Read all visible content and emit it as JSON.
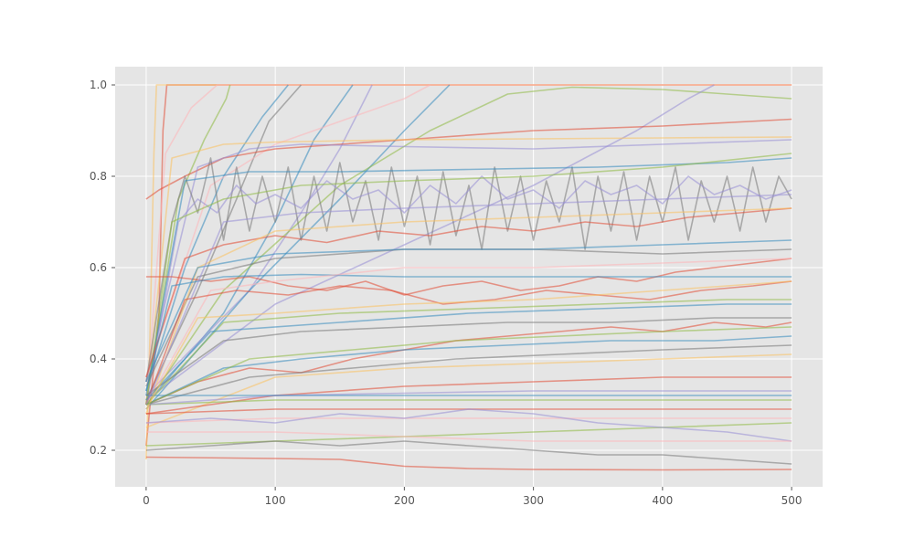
{
  "chart_data": {
    "type": "line",
    "title": "",
    "xlabel": "",
    "ylabel": "",
    "xlim": [
      -24,
      524
    ],
    "ylim": [
      0.12,
      1.04
    ],
    "grid": true,
    "legend": "none",
    "background": "#e5e5e5",
    "palette": [
      "#e24a33",
      "#348abd",
      "#988ed5",
      "#777777",
      "#fbc15e",
      "#8eba42",
      "#ffb5b8"
    ],
    "x_ticks": [
      "0",
      "100",
      "200",
      "300",
      "400",
      "500"
    ],
    "x_tick_values": [
      0,
      100,
      200,
      300,
      400,
      500
    ],
    "y_ticks": [
      "0.2",
      "0.4",
      "0.6",
      "0.8",
      "1.0"
    ],
    "y_tick_values": [
      0.2,
      0.4,
      0.6,
      0.8,
      1.0
    ],
    "series": [
      {
        "color": "#e24a33",
        "x": [
          0,
          10,
          13,
          16,
          500
        ],
        "y": [
          0.21,
          0.5,
          0.9,
          1.0,
          1.0
        ]
      },
      {
        "color": "#fbc15e",
        "x": [
          0,
          3,
          6,
          8,
          500
        ],
        "y": [
          0.18,
          0.45,
          0.85,
          1.0,
          1.0
        ]
      },
      {
        "color": "#ffb5b8",
        "x": [
          0,
          15,
          35,
          55,
          500
        ],
        "y": [
          0.3,
          0.85,
          0.95,
          1.0,
          1.0
        ]
      },
      {
        "color": "#8eba42",
        "x": [
          0,
          25,
          45,
          62,
          65
        ],
        "y": [
          0.3,
          0.75,
          0.88,
          0.97,
          1.0
        ]
      },
      {
        "color": "#348abd",
        "x": [
          0,
          30,
          60,
          90,
          110
        ],
        "y": [
          0.33,
          0.6,
          0.8,
          0.93,
          1.0
        ]
      },
      {
        "color": "#777777",
        "x": [
          0,
          40,
          70,
          95,
          120
        ],
        "y": [
          0.31,
          0.55,
          0.75,
          0.92,
          1.0
        ]
      },
      {
        "color": "#348abd",
        "x": [
          0,
          60,
          100,
          130,
          160
        ],
        "y": [
          0.3,
          0.5,
          0.7,
          0.88,
          1.0
        ]
      },
      {
        "color": "#988ed5",
        "x": [
          0,
          80,
          120,
          150,
          175
        ],
        "y": [
          0.32,
          0.55,
          0.72,
          0.86,
          1.0
        ]
      },
      {
        "color": "#ffb5b8",
        "x": [
          0,
          50,
          100,
          150,
          200,
          220
        ],
        "y": [
          0.36,
          0.78,
          0.87,
          0.92,
          0.97,
          1.0
        ]
      },
      {
        "color": "#348abd",
        "x": [
          0,
          80,
          150,
          200,
          235
        ],
        "y": [
          0.29,
          0.55,
          0.75,
          0.9,
          1.0
        ]
      },
      {
        "color": "#8eba42",
        "x": [
          0,
          60,
          150,
          220,
          280,
          330,
          400,
          500
        ],
        "y": [
          0.3,
          0.55,
          0.78,
          0.9,
          0.98,
          0.995,
          0.99,
          0.97
        ]
      },
      {
        "color": "#988ed5",
        "x": [
          0,
          100,
          200,
          300,
          380,
          420,
          440
        ],
        "y": [
          0.31,
          0.52,
          0.65,
          0.78,
          0.9,
          0.97,
          1.0
        ]
      },
      {
        "color": "#e24a33",
        "x": [
          0,
          10,
          30,
          60,
          100,
          200,
          300,
          400,
          500
        ],
        "y": [
          0.75,
          0.77,
          0.8,
          0.84,
          0.86,
          0.88,
          0.9,
          0.91,
          0.925
        ]
      },
      {
        "color": "#fbc15e",
        "x": [
          0,
          20,
          60,
          100,
          200,
          300,
          400,
          500
        ],
        "y": [
          0.3,
          0.84,
          0.87,
          0.875,
          0.88,
          0.882,
          0.884,
          0.886
        ]
      },
      {
        "color": "#988ed5",
        "x": [
          0,
          40,
          80,
          120,
          200,
          300,
          400,
          500
        ],
        "y": [
          0.35,
          0.82,
          0.86,
          0.87,
          0.865,
          0.86,
          0.87,
          0.88
        ]
      },
      {
        "color": "#777777",
        "x": [
          0,
          20,
          30,
          40,
          50,
          60,
          70,
          80,
          90,
          100,
          110,
          120,
          130,
          140,
          150,
          160,
          170,
          180,
          190,
          200,
          210,
          220,
          230,
          240,
          250,
          260,
          270,
          280,
          290,
          300,
          310,
          320,
          330,
          340,
          350,
          360,
          370,
          380,
          390,
          400,
          410,
          420,
          430,
          440,
          450,
          460,
          470,
          480,
          490,
          500
        ],
        "y": [
          0.35,
          0.7,
          0.8,
          0.72,
          0.84,
          0.66,
          0.82,
          0.68,
          0.8,
          0.7,
          0.82,
          0.66,
          0.8,
          0.68,
          0.83,
          0.7,
          0.79,
          0.66,
          0.82,
          0.69,
          0.8,
          0.65,
          0.81,
          0.67,
          0.78,
          0.64,
          0.82,
          0.68,
          0.8,
          0.66,
          0.79,
          0.7,
          0.82,
          0.64,
          0.8,
          0.68,
          0.81,
          0.66,
          0.8,
          0.7,
          0.82,
          0.66,
          0.79,
          0.7,
          0.8,
          0.68,
          0.82,
          0.7,
          0.8,
          0.75
        ]
      },
      {
        "color": "#988ed5",
        "x": [
          0,
          25,
          40,
          55,
          70,
          85,
          100,
          120,
          140,
          160,
          180,
          200,
          220,
          240,
          260,
          280,
          300,
          320,
          340,
          360,
          380,
          400,
          420,
          440,
          460,
          480,
          500
        ],
        "y": [
          0.3,
          0.7,
          0.75,
          0.72,
          0.78,
          0.74,
          0.76,
          0.73,
          0.79,
          0.75,
          0.77,
          0.72,
          0.78,
          0.74,
          0.8,
          0.75,
          0.77,
          0.73,
          0.79,
          0.76,
          0.78,
          0.74,
          0.8,
          0.76,
          0.78,
          0.75,
          0.77
        ]
      },
      {
        "color": "#348abd",
        "x": [
          0,
          30,
          80,
          150,
          250,
          350,
          450,
          500
        ],
        "y": [
          0.32,
          0.79,
          0.81,
          0.81,
          0.815,
          0.82,
          0.83,
          0.84
        ]
      },
      {
        "color": "#8eba42",
        "x": [
          0,
          20,
          60,
          120,
          200,
          300,
          400,
          500
        ],
        "y": [
          0.3,
          0.7,
          0.75,
          0.78,
          0.79,
          0.8,
          0.82,
          0.85
        ]
      },
      {
        "color": "#e24a33",
        "x": [
          0,
          30,
          60,
          100,
          140,
          180,
          220,
          260,
          300,
          340,
          380,
          420,
          460,
          500
        ],
        "y": [
          0.36,
          0.62,
          0.65,
          0.67,
          0.655,
          0.68,
          0.67,
          0.69,
          0.68,
          0.7,
          0.69,
          0.71,
          0.72,
          0.73
        ]
      },
      {
        "color": "#777777",
        "x": [
          0,
          40,
          100,
          200,
          300,
          400,
          500
        ],
        "y": [
          0.34,
          0.58,
          0.62,
          0.64,
          0.64,
          0.63,
          0.64
        ]
      },
      {
        "color": "#fbc15e",
        "x": [
          0,
          40,
          100,
          200,
          300,
          400,
          500
        ],
        "y": [
          0.28,
          0.6,
          0.68,
          0.7,
          0.71,
          0.72,
          0.73
        ]
      },
      {
        "color": "#e24a33",
        "x": [
          0,
          20,
          50,
          80,
          110,
          140,
          170,
          200,
          230,
          260,
          290,
          320,
          350,
          380,
          410,
          440,
          470,
          500
        ],
        "y": [
          0.58,
          0.58,
          0.57,
          0.58,
          0.56,
          0.55,
          0.57,
          0.54,
          0.56,
          0.57,
          0.55,
          0.56,
          0.58,
          0.57,
          0.59,
          0.6,
          0.61,
          0.62
        ]
      },
      {
        "color": "#348abd",
        "x": [
          0,
          20,
          60,
          120,
          200,
          300,
          400,
          500
        ],
        "y": [
          0.33,
          0.56,
          0.58,
          0.585,
          0.58,
          0.58,
          0.58,
          0.58
        ]
      },
      {
        "color": "#ffb5b8",
        "x": [
          0,
          50,
          100,
          200,
          300,
          400,
          500
        ],
        "y": [
          0.3,
          0.55,
          0.57,
          0.6,
          0.6,
          0.61,
          0.62
        ]
      },
      {
        "color": "#e24a33",
        "x": [
          0,
          30,
          70,
          110,
          150,
          190,
          230,
          270,
          310,
          350,
          390,
          430,
          470,
          500
        ],
        "y": [
          0.3,
          0.53,
          0.55,
          0.54,
          0.56,
          0.55,
          0.52,
          0.53,
          0.55,
          0.54,
          0.53,
          0.55,
          0.56,
          0.57
        ]
      },
      {
        "color": "#8eba42",
        "x": [
          0,
          60,
          150,
          250,
          350,
          450,
          500
        ],
        "y": [
          0.3,
          0.48,
          0.5,
          0.51,
          0.52,
          0.53,
          0.53
        ]
      },
      {
        "color": "#348abd",
        "x": [
          0,
          50,
          150,
          250,
          350,
          450,
          500
        ],
        "y": [
          0.31,
          0.46,
          0.48,
          0.5,
          0.51,
          0.52,
          0.52
        ]
      },
      {
        "color": "#e24a33",
        "x": [
          0,
          40,
          80,
          120,
          160,
          200,
          240,
          280,
          320,
          360,
          400,
          440,
          480,
          500
        ],
        "y": [
          0.3,
          0.35,
          0.38,
          0.37,
          0.4,
          0.42,
          0.44,
          0.45,
          0.46,
          0.47,
          0.46,
          0.48,
          0.47,
          0.48
        ]
      },
      {
        "color": "#777777",
        "x": [
          0,
          60,
          120,
          200,
          280,
          360,
          440,
          500
        ],
        "y": [
          0.32,
          0.44,
          0.46,
          0.47,
          0.48,
          0.48,
          0.49,
          0.49
        ]
      },
      {
        "color": "#348abd",
        "x": [
          0,
          60,
          120,
          200,
          280,
          360,
          440,
          500
        ],
        "y": [
          0.3,
          0.38,
          0.4,
          0.42,
          0.43,
          0.44,
          0.44,
          0.45
        ]
      },
      {
        "color": "#777777",
        "x": [
          0,
          80,
          160,
          240,
          320,
          400,
          500
        ],
        "y": [
          0.3,
          0.36,
          0.38,
          0.4,
          0.41,
          0.42,
          0.43
        ]
      },
      {
        "color": "#fbc15e",
        "x": [
          0,
          100,
          200,
          300,
          400,
          500
        ],
        "y": [
          0.25,
          0.36,
          0.38,
          0.39,
          0.4,
          0.41
        ]
      },
      {
        "color": "#e24a33",
        "x": [
          0,
          100,
          200,
          300,
          400,
          500
        ],
        "y": [
          0.28,
          0.32,
          0.34,
          0.35,
          0.36,
          0.36
        ]
      },
      {
        "color": "#8eba42",
        "x": [
          0,
          100,
          200,
          300,
          400,
          500
        ],
        "y": [
          0.3,
          0.31,
          0.31,
          0.31,
          0.31,
          0.31
        ]
      },
      {
        "color": "#988ed5",
        "x": [
          0,
          100,
          200,
          300,
          400,
          500
        ],
        "y": [
          0.3,
          0.32,
          0.325,
          0.33,
          0.33,
          0.33
        ]
      },
      {
        "color": "#348abd",
        "x": [
          0,
          100,
          200,
          300,
          400,
          500
        ],
        "y": [
          0.32,
          0.32,
          0.32,
          0.32,
          0.32,
          0.32
        ]
      },
      {
        "color": "#e24a33",
        "x": [
          0,
          100,
          200,
          300,
          400,
          500
        ],
        "y": [
          0.28,
          0.29,
          0.29,
          0.29,
          0.29,
          0.29
        ]
      },
      {
        "color": "#ffb5b8",
        "x": [
          0,
          100,
          200,
          300,
          400,
          500
        ],
        "y": [
          0.26,
          0.27,
          0.27,
          0.27,
          0.27,
          0.27
        ]
      },
      {
        "color": "#8eba42",
        "x": [
          0,
          100,
          200,
          300,
          400,
          500
        ],
        "y": [
          0.21,
          0.22,
          0.23,
          0.24,
          0.25,
          0.26
        ]
      },
      {
        "color": "#988ed5",
        "x": [
          0,
          50,
          100,
          150,
          200,
          250,
          300,
          350,
          400,
          450,
          500
        ],
        "y": [
          0.26,
          0.27,
          0.26,
          0.28,
          0.27,
          0.29,
          0.28,
          0.26,
          0.25,
          0.24,
          0.22
        ]
      },
      {
        "color": "#777777",
        "x": [
          0,
          50,
          100,
          150,
          200,
          250,
          300,
          350,
          400,
          450,
          500
        ],
        "y": [
          0.2,
          0.21,
          0.22,
          0.21,
          0.22,
          0.21,
          0.2,
          0.19,
          0.19,
          0.18,
          0.17
        ]
      },
      {
        "color": "#e24a33",
        "x": [
          0,
          100,
          150,
          200,
          250,
          300,
          400,
          500
        ],
        "y": [
          0.185,
          0.182,
          0.18,
          0.165,
          0.16,
          0.158,
          0.157,
          0.158
        ]
      },
      {
        "color": "#ffb5b8",
        "x": [
          0,
          100,
          200,
          300,
          400,
          500
        ],
        "y": [
          0.24,
          0.24,
          0.23,
          0.22,
          0.22,
          0.22
        ]
      },
      {
        "color": "#348abd",
        "x": [
          0,
          40,
          100,
          200,
          300,
          400,
          500
        ],
        "y": [
          0.35,
          0.6,
          0.63,
          0.64,
          0.64,
          0.65,
          0.66
        ]
      },
      {
        "color": "#fbc15e",
        "x": [
          0,
          40,
          100,
          200,
          300,
          400,
          500
        ],
        "y": [
          0.29,
          0.49,
          0.5,
          0.52,
          0.53,
          0.55,
          0.57
        ]
      },
      {
        "color": "#988ed5",
        "x": [
          0,
          60,
          120,
          200,
          300,
          400,
          500
        ],
        "y": [
          0.3,
          0.7,
          0.72,
          0.73,
          0.74,
          0.75,
          0.76
        ]
      },
      {
        "color": "#8eba42",
        "x": [
          0,
          80,
          160,
          240,
          320,
          400,
          500
        ],
        "y": [
          0.3,
          0.4,
          0.42,
          0.44,
          0.45,
          0.46,
          0.47
        ]
      }
    ]
  }
}
